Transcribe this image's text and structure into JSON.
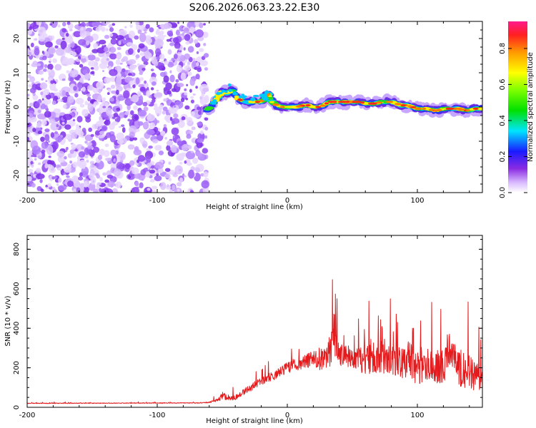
{
  "title": "S206.2026.063.23.22.E30",
  "chart_data": [
    {
      "type": "heatmap",
      "xlabel": "Height of straight line (km)",
      "ylabel": "Frequency (Hz)",
      "xlim": [
        -200,
        150
      ],
      "ylim": [
        -25,
        25
      ],
      "x_ticks": [
        "-200",
        "-100",
        "0",
        "100"
      ],
      "y_ticks": [
        "-20",
        "-10",
        "0",
        "10",
        "20"
      ],
      "noise_region_x": [
        -200,
        -62
      ],
      "signal_track": {
        "x": [
          -62,
          -58,
          -54,
          -50,
          -46,
          -42,
          -38,
          -34,
          -30,
          -26,
          -22,
          -18,
          -16,
          -14,
          -12,
          -8,
          -4,
          0,
          4,
          8,
          12,
          16,
          20,
          24,
          28,
          32,
          36,
          40,
          44,
          48,
          52,
          56,
          60,
          64,
          68,
          72,
          76,
          80,
          84,
          88,
          92,
          96,
          100,
          104,
          108,
          112,
          116,
          120,
          124,
          128,
          132,
          136,
          140,
          144,
          150
        ],
        "freq": [
          -1.0,
          0.5,
          2.5,
          4.5,
          4.0,
          5.0,
          2.5,
          1.5,
          1.5,
          1.5,
          1.5,
          2.0,
          3.5,
          4.0,
          1.5,
          0.5,
          0.0,
          0.0,
          0.0,
          0.0,
          0.5,
          0.5,
          0.0,
          0.0,
          0.5,
          1.5,
          1.5,
          1.5,
          1.5,
          1.5,
          1.5,
          1.5,
          1.0,
          1.0,
          1.0,
          1.5,
          1.5,
          1.5,
          1.0,
          0.5,
          0.5,
          0.0,
          -0.5,
          -0.5,
          -0.5,
          -1.0,
          -1.0,
          -0.5,
          -0.5,
          -0.5,
          -0.5,
          -1.0,
          -1.0,
          -0.5,
          -0.5
        ]
      },
      "colorbar": {
        "label": "Normalized spectral amplitude",
        "range": [
          0,
          0.95
        ],
        "ticks": [
          "0.0",
          "0.2",
          "0.4",
          "0.6",
          "0.8"
        ]
      }
    },
    {
      "type": "line",
      "xlabel": "Height of straight line (km)",
      "ylabel": "SNR (10 * v/v)",
      "xlim": [
        -200,
        150
      ],
      "ylim": [
        0,
        870
      ],
      "x_ticks": [
        "-200",
        "-100",
        "0",
        "100"
      ],
      "y_ticks": [
        "0",
        "200",
        "400",
        "600",
        "800"
      ],
      "color": "#e41a1c",
      "envelope": {
        "x": [
          -200,
          -65,
          -60,
          -52,
          -50,
          -45,
          -40,
          -30,
          -20,
          -10,
          0,
          10,
          20,
          25,
          30,
          33,
          35,
          40,
          50,
          60,
          65,
          70,
          71,
          75,
          80,
          90,
          95,
          100,
          105,
          110,
          115,
          120,
          123,
          125,
          128,
          130,
          135,
          140,
          145,
          150
        ],
        "base": [
          20,
          22,
          25,
          40,
          60,
          45,
          50,
          90,
          130,
          160,
          200,
          220,
          240,
          230,
          240,
          280,
          330,
          260,
          240,
          230,
          240,
          250,
          300,
          240,
          230,
          220,
          230,
          210,
          200,
          200,
          200,
          210,
          260,
          300,
          240,
          200,
          180,
          160,
          150,
          140
        ],
        "amp": [
          6,
          6,
          10,
          40,
          80,
          40,
          50,
          60,
          80,
          90,
          110,
          120,
          150,
          180,
          220,
          300,
          280,
          200,
          230,
          280,
          300,
          300,
          570,
          320,
          300,
          330,
          380,
          380,
          300,
          280,
          330,
          350,
          450,
          420,
          380,
          330,
          350,
          350,
          250,
          200
        ]
      }
    }
  ]
}
